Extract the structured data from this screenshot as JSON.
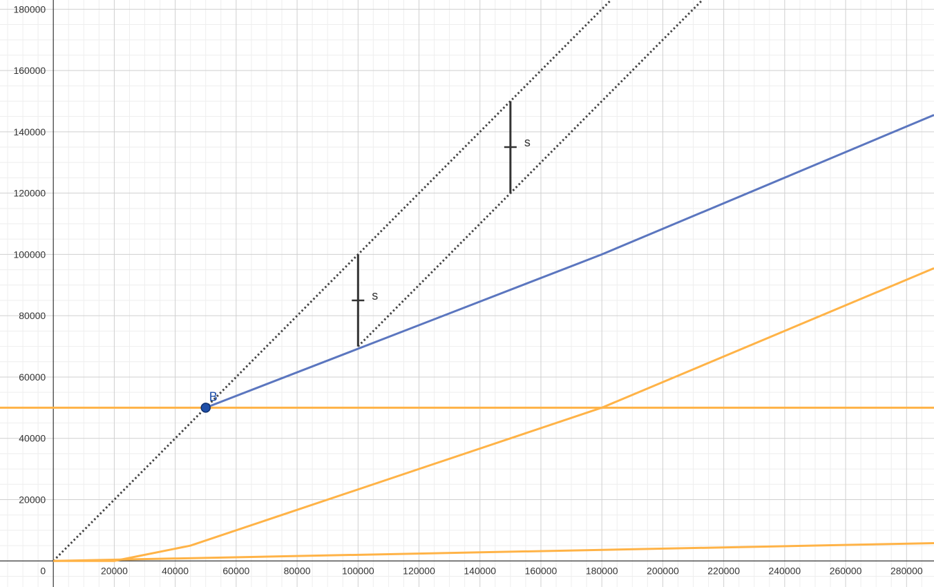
{
  "chart_data": {
    "type": "line",
    "title": "",
    "xlabel": "",
    "ylabel": "",
    "xlim": [
      -17500,
      289000
    ],
    "ylim": [
      -8500,
      183000
    ],
    "grid": true,
    "minor_grid": true,
    "x_ticks": [
      0,
      20000,
      40000,
      60000,
      80000,
      100000,
      120000,
      140000,
      160000,
      180000,
      200000,
      220000,
      240000,
      260000,
      280000
    ],
    "y_ticks": [
      20000,
      40000,
      60000,
      80000,
      100000,
      120000,
      140000,
      160000,
      180000
    ],
    "origin_label": "0",
    "colors": {
      "blue": "#5b76bf",
      "orange": "#ffb347",
      "dotted": "#444444",
      "segment": "#333333",
      "point_fill": "#1f4fa8",
      "point_stroke": "#0d2f6e",
      "point_label": "#1f4fa8"
    },
    "series": [
      {
        "style": "dotted",
        "color": "dotted",
        "x": [
          0,
          183000
        ],
        "y": [
          0,
          183000
        ]
      },
      {
        "style": "dotted",
        "color": "dotted",
        "x": [
          100000,
          213000
        ],
        "y": [
          70000,
          183000
        ]
      },
      {
        "style": "solid",
        "color": "blue",
        "x": [
          50000,
          180000,
          289000
        ],
        "y": [
          50000,
          100000,
          145500
        ]
      },
      {
        "style": "solid",
        "color": "orange",
        "x": [
          -17500,
          289000
        ],
        "y": [
          50000,
          50000
        ]
      },
      {
        "style": "solid",
        "color": "orange",
        "x": [
          0,
          20000,
          45000,
          180000,
          289000
        ],
        "y": [
          0,
          0,
          5000,
          50000,
          95500
        ]
      },
      {
        "style": "solid",
        "color": "orange",
        "x": [
          0,
          289000
        ],
        "y": [
          0,
          5800
        ]
      }
    ],
    "segments": [
      {
        "label": "s",
        "x": 100000,
        "y1": 70000,
        "y2": 100000
      },
      {
        "label": "s",
        "x": 150000,
        "y1": 120000,
        "y2": 150000
      }
    ],
    "points": [
      {
        "label": "B",
        "x": 50000,
        "y": 50000
      }
    ]
  }
}
